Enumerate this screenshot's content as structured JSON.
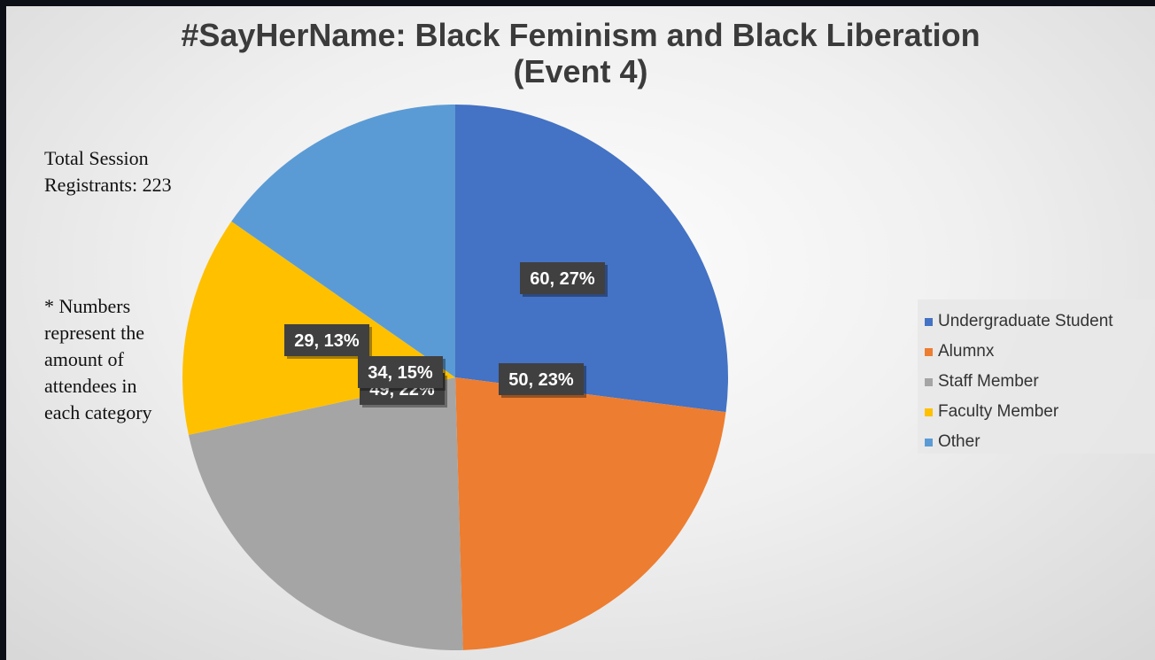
{
  "chart_data": {
    "type": "pie",
    "title": "#SayHerName: Black Feminism and Black Liberation",
    "subtitle": "(Event 4)",
    "categories": [
      "Undergraduate Student",
      "Alumnx",
      "Staff Member",
      "Faculty Member",
      "Other"
    ],
    "values": [
      60,
      50,
      49,
      29,
      34
    ],
    "data_labels": [
      "60, 27%",
      "50, 23%",
      "49, 22%",
      "29, 13%",
      "34, 15%"
    ],
    "colors": [
      "#4472c4",
      "#ed7d31",
      "#a5a5a5",
      "#ffc000",
      "#5b9bd5"
    ],
    "legend_position": "right",
    "annotations": {
      "total_lines": [
        "Total Session",
        "Registrants:  223"
      ],
      "note_lines": [
        "* Numbers",
        "represent the",
        "amount of",
        "attendees in",
        "each category"
      ]
    }
  }
}
